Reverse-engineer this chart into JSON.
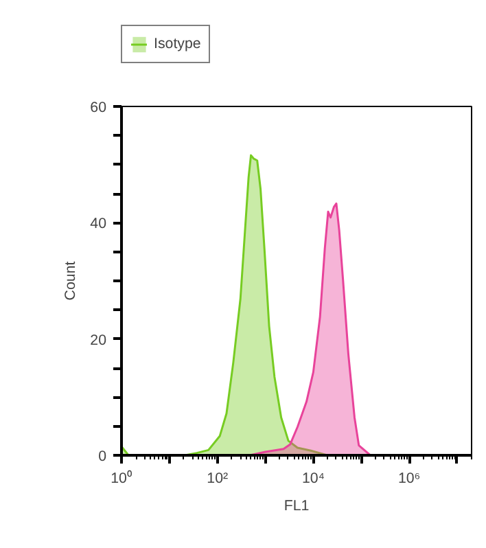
{
  "chart_data": {
    "type": "area",
    "xlabel": "FL1",
    "ylabel": "Count",
    "log": "x",
    "xlim": [
      1,
      20000000
    ],
    "ylim": [
      0,
      60
    ],
    "xticks": [
      {
        "value": 1,
        "label": "10⁰"
      },
      {
        "value": 10,
        "label": null
      },
      {
        "value": 100,
        "label": "10²"
      },
      {
        "value": 1000,
        "label": null
      },
      {
        "value": 10000,
        "label": "10⁴"
      },
      {
        "value": 100000,
        "label": null
      },
      {
        "value": 1000000,
        "label": "10⁶"
      },
      {
        "value": 10000000,
        "label": null
      }
    ],
    "yticks": [
      0,
      {
        "value": 5,
        "label": null
      },
      {
        "value": 10,
        "label": null
      },
      {
        "value": 15,
        "label": null
      },
      20,
      {
        "value": 25,
        "label": null
      },
      {
        "value": 30,
        "label": null
      },
      {
        "value": 35,
        "label": null
      },
      40,
      {
        "value": 45,
        "label": null
      },
      {
        "value": 50,
        "label": null
      },
      {
        "value": 55,
        "label": null
      },
      60
    ],
    "grid": false,
    "legend": "top",
    "series": [
      {
        "name": "Isotype",
        "color": "#77cc22",
        "x": [
          1,
          1.4,
          21,
          37,
          65,
          112,
          155,
          214,
          302,
          372,
          447,
          501,
          575,
          676,
          794,
          955,
          1200,
          1550,
          2140,
          3020,
          4680,
          8900,
          19500,
          20000000
        ],
        "values": [
          1.5,
          0,
          0,
          0.4,
          0.9,
          3.3,
          7.2,
          15.9,
          26.9,
          38,
          47.8,
          51.6,
          51,
          50.7,
          45.8,
          35.6,
          22.2,
          13.5,
          6.5,
          2.5,
          1.3,
          0.8,
          0,
          0
        ]
      },
      {
        "color": "#e8439a",
        "x": [
          1,
          470,
          1000,
          2400,
          3300,
          4700,
          7200,
          10000,
          13800,
          17400,
          20400,
          22900,
          26900,
          30200,
          34700,
          41700,
          53700,
          72400,
          89100,
          155000,
          20000000
        ],
        "values": [
          0,
          0,
          0.6,
          1.1,
          1.9,
          4.9,
          9.2,
          14.3,
          23.8,
          35.6,
          41.9,
          40.9,
          42.7,
          43.3,
          38.7,
          30.1,
          17.5,
          6.5,
          1.7,
          0,
          0
        ]
      }
    ]
  }
}
